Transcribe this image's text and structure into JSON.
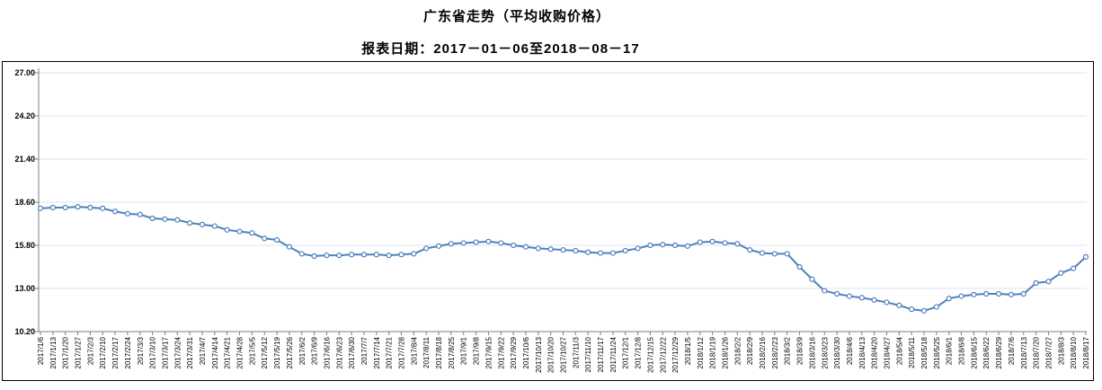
{
  "title": "广东省走势（平均收购价格）",
  "subtitle": "报表日期：2017－01－06至2018－08－17",
  "colors": {
    "line": "#4F81BD",
    "marker_fill": "#FFFFFF",
    "gridline": "#DDE4EE",
    "axis": "#808080",
    "frame_border": "#000000",
    "text": "#000000",
    "background": "#FFFFFF"
  },
  "chart_data": {
    "type": "line",
    "title": "广东省走势（平均收购价格）",
    "subtitle": "报表日期：2017－01－06至2018－08－17",
    "xlabel": "",
    "ylabel": "",
    "ylim": [
      10.2,
      27.0
    ],
    "yticks": [
      10.2,
      13.0,
      15.8,
      18.6,
      21.4,
      24.2,
      27.0
    ],
    "ytick_labels": [
      "10.20",
      "13.00",
      "15.80",
      "18.60",
      "21.40",
      "24.20",
      "27.00"
    ],
    "grid": true,
    "legend": "none",
    "x": [
      "2017/1/6",
      "2017/1/13",
      "2017/1/20",
      "2017/1/27",
      "2017/2/3",
      "2017/2/10",
      "2017/2/17",
      "2017/2/24",
      "2017/3/3",
      "2017/3/10",
      "2017/3/17",
      "2017/3/24",
      "2017/3/31",
      "2017/4/7",
      "2017/4/14",
      "2017/4/21",
      "2017/4/28",
      "2017/5/5",
      "2017/5/12",
      "2017/5/19",
      "2017/5/26",
      "2017/6/2",
      "2017/6/9",
      "2017/6/16",
      "2017/6/23",
      "2017/6/30",
      "2017/7/7",
      "2017/7/14",
      "2017/7/21",
      "2017/7/28",
      "2017/8/4",
      "2017/8/11",
      "2017/8/18",
      "2017/8/25",
      "2017/9/1",
      "2017/9/8",
      "2017/9/15",
      "2017/9/22",
      "2017/9/29",
      "2017/10/6",
      "2017/10/13",
      "2017/10/20",
      "2017/10/27",
      "2017/11/3",
      "2017/11/10",
      "2017/11/17",
      "2017/11/24",
      "2017/12/1",
      "2017/12/8",
      "2017/12/15",
      "2017/12/22",
      "2017/12/29",
      "2018/1/5",
      "2018/1/12",
      "2018/1/19",
      "2018/1/26",
      "2018/2/2",
      "2018/2/9",
      "2018/2/16",
      "2018/2/23",
      "2018/3/2",
      "2018/3/9",
      "2018/3/16",
      "2018/3/23",
      "2018/3/30",
      "2018/4/6",
      "2018/4/13",
      "2018/4/20",
      "2018/4/27",
      "2018/5/4",
      "2018/5/11",
      "2018/5/18",
      "2018/5/25",
      "2018/6/1",
      "2018/6/8",
      "2018/6/15",
      "2018/6/22",
      "2018/6/29",
      "2018/7/6",
      "2018/7/13",
      "2018/7/20",
      "2018/7/27",
      "2018/8/3",
      "2018/8/10",
      "2018/8/17"
    ],
    "series": [
      {
        "name": "平均收购价格",
        "values": [
          18.2,
          18.25,
          18.25,
          18.3,
          18.25,
          18.2,
          18.0,
          17.85,
          17.8,
          17.55,
          17.5,
          17.45,
          17.25,
          17.15,
          17.05,
          16.8,
          16.7,
          16.6,
          16.25,
          16.15,
          15.7,
          15.25,
          15.1,
          15.15,
          15.15,
          15.2,
          15.2,
          15.2,
          15.15,
          15.2,
          15.25,
          15.6,
          15.75,
          15.9,
          15.95,
          16.0,
          16.05,
          15.95,
          15.8,
          15.7,
          15.6,
          15.55,
          15.5,
          15.45,
          15.35,
          15.3,
          15.3,
          15.45,
          15.6,
          15.8,
          15.85,
          15.8,
          15.75,
          16.0,
          16.05,
          15.95,
          15.9,
          15.5,
          15.3,
          15.25,
          15.25,
          14.4,
          13.6,
          12.85,
          12.65,
          12.5,
          12.4,
          12.25,
          12.1,
          11.9,
          11.65,
          11.55,
          11.8,
          12.35,
          12.5,
          12.6,
          12.65,
          12.65,
          12.6,
          12.65,
          13.35,
          13.45,
          14.0,
          14.3,
          15.05
        ]
      }
    ]
  }
}
